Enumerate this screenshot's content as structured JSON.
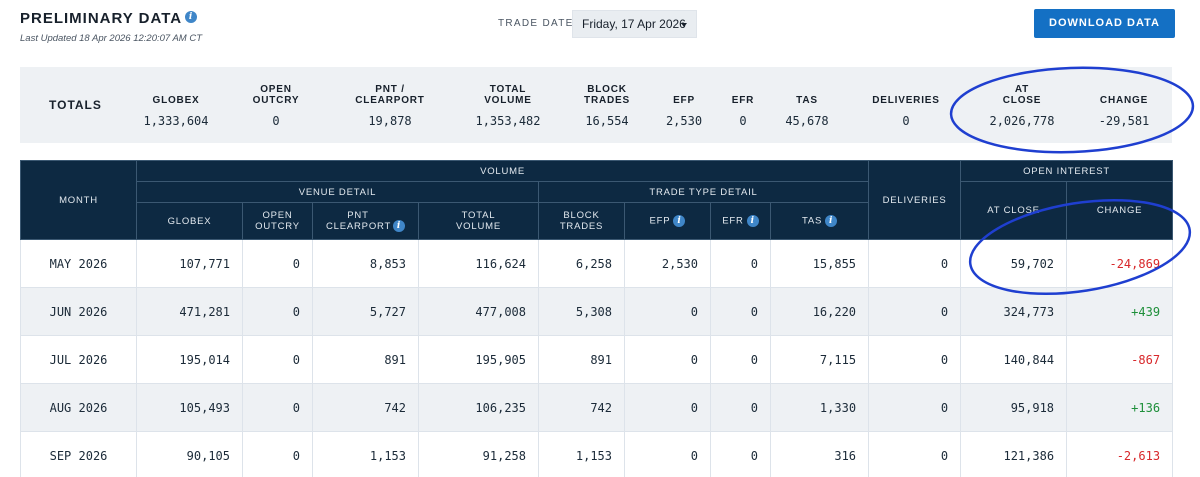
{
  "header": {
    "title": "PRELIMINARY DATA",
    "last_updated": "Last Updated 18 Apr 2026 12:20:07 AM CT",
    "trade_date_label": "TRADE DATE",
    "trade_date_value": "Friday, 17 Apr 2026",
    "download_label": "DOWNLOAD DATA"
  },
  "totals": {
    "label": "TOTALS",
    "columns": [
      {
        "label": "GLOBEX",
        "value": "1,333,604"
      },
      {
        "label": "OPEN OUTCRY",
        "value": "0"
      },
      {
        "label": "PNT / CLEARPORT",
        "value": "19,878"
      },
      {
        "label": "TOTAL VOLUME",
        "value": "1,353,482"
      },
      {
        "label": "BLOCK TRADES",
        "value": "16,554"
      },
      {
        "label": "EFP",
        "value": "2,530"
      },
      {
        "label": "EFR",
        "value": "0"
      },
      {
        "label": "TAS",
        "value": "45,678"
      },
      {
        "label": "DELIVERIES",
        "value": "0"
      },
      {
        "label": "AT CLOSE",
        "value": "2,026,778"
      },
      {
        "label": "CHANGE",
        "value": "-29,581"
      }
    ]
  },
  "table": {
    "month": "MONTH",
    "volume": "VOLUME",
    "venue_detail": "VENUE DETAIL",
    "trade_type_detail": "TRADE TYPE DETAIL",
    "deliveries": "DELIVERIES",
    "open_interest": "OPEN INTEREST",
    "cols": {
      "globex": "GLOBEX",
      "open_outcry": "OPEN OUTCRY",
      "pnt_clearport": "PNT CLEARPORT",
      "total_volume": "TOTAL VOLUME",
      "block_trades": "BLOCK TRADES",
      "efp": "EFP",
      "efr": "EFR",
      "tas": "TAS",
      "at_close": "AT CLOSE",
      "change": "CHANGE"
    },
    "rows": [
      {
        "month": "MAY 2026",
        "globex": "107,771",
        "open_outcry": "0",
        "pnt": "8,853",
        "total": "116,624",
        "block": "6,258",
        "efp": "2,530",
        "efr": "0",
        "tas": "15,855",
        "deliveries": "0",
        "at_close": "59,702",
        "change": "-24,869"
      },
      {
        "month": "JUN 2026",
        "globex": "471,281",
        "open_outcry": "0",
        "pnt": "5,727",
        "total": "477,008",
        "block": "5,308",
        "efp": "0",
        "efr": "0",
        "tas": "16,220",
        "deliveries": "0",
        "at_close": "324,773",
        "change": "+439"
      },
      {
        "month": "JUL 2026",
        "globex": "195,014",
        "open_outcry": "0",
        "pnt": "891",
        "total": "195,905",
        "block": "891",
        "efp": "0",
        "efr": "0",
        "tas": "7,115",
        "deliveries": "0",
        "at_close": "140,844",
        "change": "-867"
      },
      {
        "month": "AUG 2026",
        "globex": "105,493",
        "open_outcry": "0",
        "pnt": "742",
        "total": "106,235",
        "block": "742",
        "efp": "0",
        "efr": "0",
        "tas": "1,330",
        "deliveries": "0",
        "at_close": "95,918",
        "change": "+136"
      },
      {
        "month": "SEP 2026",
        "globex": "90,105",
        "open_outcry": "0",
        "pnt": "1,153",
        "total": "91,258",
        "block": "1,153",
        "efp": "0",
        "efr": "0",
        "tas": "316",
        "deliveries": "0",
        "at_close": "121,386",
        "change": "-2,613"
      }
    ]
  },
  "colors": {
    "header_bg": "#0d2942",
    "accent_blue": "#1470c4",
    "negative": "#d8282b",
    "positive": "#1e8f3a",
    "annotation": "#1f3fd0"
  },
  "icons": [
    "info-icon",
    "chevron-down-icon"
  ]
}
